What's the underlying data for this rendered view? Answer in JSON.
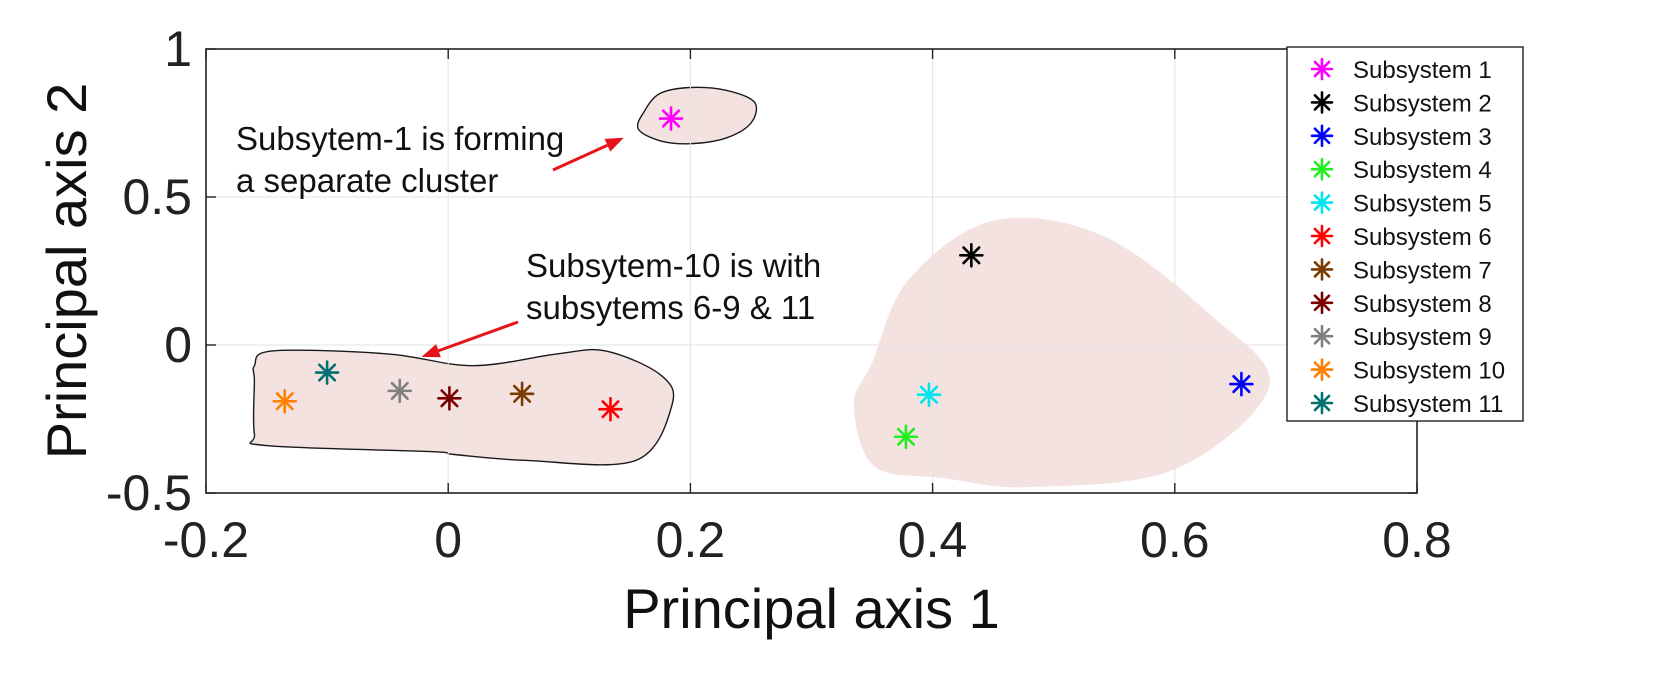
{
  "chart_data": {
    "type": "scatter",
    "title": "",
    "xlabel": "Principal axis 1",
    "ylabel": "Principal axis 2",
    "xlim": [
      -0.2,
      0.8
    ],
    "ylim": [
      -0.5,
      1
    ],
    "xticks": [
      "-0.2",
      "0",
      "0.2",
      "0.4",
      "0.6",
      "0.8"
    ],
    "yticks": [
      "-0.5",
      "0",
      "0.5",
      "1"
    ],
    "grid": true,
    "legend_position": "top-right",
    "marker": "asterisk",
    "series": [
      {
        "name": "Subsystem 1",
        "color": "#ff00ff",
        "x": 0.184,
        "y": 0.765
      },
      {
        "name": "Subsystem 2",
        "color": "#000000",
        "x": 0.432,
        "y": 0.303
      },
      {
        "name": "Subsystem 3",
        "color": "#0000ff",
        "x": 0.655,
        "y": -0.132
      },
      {
        "name": "Subsystem 4",
        "color": "#22ee22",
        "x": 0.378,
        "y": -0.31
      },
      {
        "name": "Subsystem 5",
        "color": "#00e5ee",
        "x": 0.397,
        "y": -0.168
      },
      {
        "name": "Subsystem 6",
        "color": "#ff0000",
        "x": 0.134,
        "y": -0.217
      },
      {
        "name": "Subsystem 7",
        "color": "#7a3b00",
        "x": 0.061,
        "y": -0.165
      },
      {
        "name": "Subsystem 8",
        "color": "#7a0000",
        "x": 0.001,
        "y": -0.18
      },
      {
        "name": "Subsystem 9",
        "color": "#808080",
        "x": -0.04,
        "y": -0.155
      },
      {
        "name": "Subsystem 10",
        "color": "#ff8000",
        "x": -0.135,
        "y": -0.19
      },
      {
        "name": "Subsystem 11",
        "color": "#007070",
        "x": -0.1,
        "y": -0.093
      }
    ],
    "annotations": [
      {
        "lines": [
          "Subsytem-1 is forming",
          "a separate cluster"
        ],
        "arrow_tip": [
          0.145,
          0.7
        ]
      },
      {
        "lines": [
          "Subsytem-10 is with",
          "subsytems 6-9 & 11"
        ],
        "arrow_tip": [
          -0.022,
          -0.04
        ]
      }
    ],
    "cluster_regions": [
      {
        "name": "cluster-subsystem-1",
        "outlined": true,
        "fill": "#f4e2e0",
        "boundary": [
          [
            0.162,
            0.79
          ],
          [
            0.175,
            0.85
          ],
          [
            0.2,
            0.87
          ],
          [
            0.23,
            0.86
          ],
          [
            0.253,
            0.82
          ],
          [
            0.25,
            0.75
          ],
          [
            0.23,
            0.7
          ],
          [
            0.2,
            0.68
          ],
          [
            0.175,
            0.69
          ],
          [
            0.157,
            0.73
          ]
        ]
      },
      {
        "name": "cluster-subsystems-6-11",
        "outlined": true,
        "fill": "#f4e2e0",
        "boundary": [
          [
            -0.16,
            -0.07
          ],
          [
            -0.145,
            -0.02
          ],
          [
            -0.05,
            -0.03
          ],
          [
            0.02,
            -0.07
          ],
          [
            0.09,
            -0.03
          ],
          [
            0.13,
            -0.02
          ],
          [
            0.175,
            -0.1
          ],
          [
            0.185,
            -0.2
          ],
          [
            0.155,
            -0.39
          ],
          [
            0.065,
            -0.39
          ],
          [
            0.005,
            -0.37
          ],
          [
            -0.015,
            -0.36
          ],
          [
            -0.15,
            -0.34
          ],
          [
            -0.16,
            -0.3
          ],
          [
            -0.16,
            -0.12
          ]
        ]
      },
      {
        "name": "cluster-subsystems-2-5",
        "outlined": false,
        "fill": "#f4e2e0",
        "boundary": [
          [
            0.335,
            -0.2
          ],
          [
            0.35,
            -0.06
          ],
          [
            0.38,
            0.22
          ],
          [
            0.45,
            0.42
          ],
          [
            0.54,
            0.37
          ],
          [
            0.63,
            0.1
          ],
          [
            0.678,
            -0.14
          ],
          [
            0.6,
            -0.42
          ],
          [
            0.48,
            -0.48
          ],
          [
            0.41,
            -0.45
          ],
          [
            0.352,
            -0.41
          ]
        ]
      }
    ]
  }
}
